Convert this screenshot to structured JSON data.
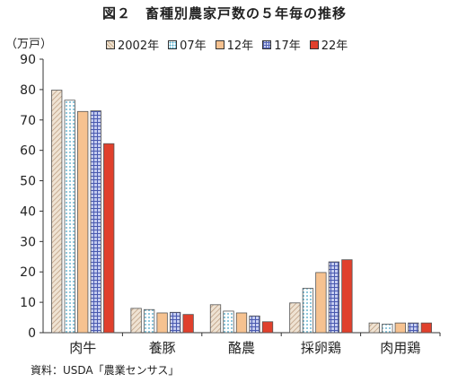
{
  "chart_data": {
    "type": "bar",
    "title": "図２　畜種別農家戸数の５年毎の推移",
    "ylabel": "（万戸）",
    "ylim": [
      0,
      90
    ],
    "yticks": [
      0,
      10,
      20,
      30,
      40,
      50,
      60,
      70,
      80,
      90
    ],
    "categories": [
      "肉牛",
      "養豚",
      "酪農",
      "採卵鶏",
      "肉用鶏"
    ],
    "series": [
      {
        "name": "2002年",
        "values": [
          79.8,
          8.0,
          9.2,
          9.8,
          3.2
        ],
        "color": "#d9c3a8",
        "pattern": "diag"
      },
      {
        "name": "07年",
        "values": [
          76.5,
          7.6,
          7.1,
          14.6,
          2.8
        ],
        "color": "#ffffff",
        "pattern": "dots"
      },
      {
        "name": "12年",
        "values": [
          72.8,
          6.5,
          6.5,
          19.8,
          3.2
        ],
        "color": "#f6c290",
        "pattern": "none"
      },
      {
        "name": "17年",
        "values": [
          73.0,
          6.7,
          5.5,
          23.3,
          3.2
        ],
        "color": "#9aa9dd",
        "pattern": "grid"
      },
      {
        "name": "22年",
        "values": [
          62.2,
          6.0,
          3.6,
          24.0,
          3.2
        ],
        "color": "#e0402c",
        "pattern": "none"
      }
    ],
    "grid": false,
    "legend": "top"
  },
  "source": "資料：USDA「農業センサス」"
}
